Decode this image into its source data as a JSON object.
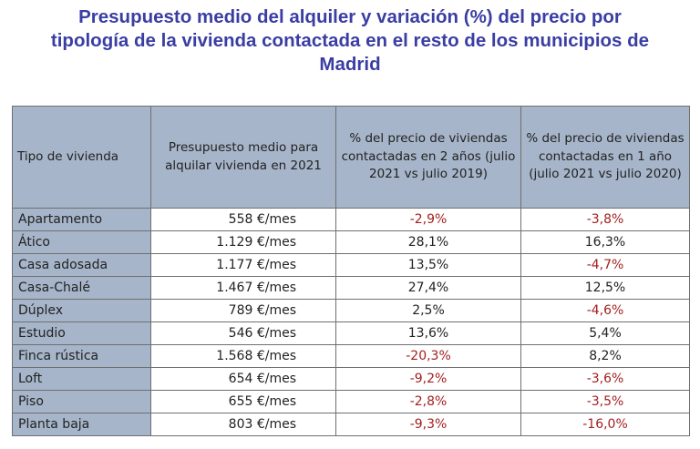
{
  "title": {
    "line1": "Presupuesto medio del alquiler y variación (%) del precio por",
    "line2": "tipología de la vivienda contactada en el resto de los municipios de",
    "line3": "Madrid"
  },
  "colors": {
    "title": "#3a3ea3",
    "header_bg": "#a6b5c9",
    "negative": "#a31f1f",
    "text": "#222222"
  },
  "table": {
    "headers": [
      "Tipo de vivienda",
      "Presupuesto medio para alquilar vivienda en 2021",
      "% del precio de viviendas contactadas en 2 años (julio 2021 vs julio 2019)",
      "% del precio de viviendas contactadas en 1 año (julio 2021 vs julio 2020)"
    ],
    "rows": [
      {
        "tipo": "Apartamento",
        "presupuesto": "558 €/mes",
        "var2": "-2,9%",
        "var1": "-3,8%"
      },
      {
        "tipo": "Ático",
        "presupuesto": "1.129 €/mes",
        "var2": "28,1%",
        "var1": "16,3%"
      },
      {
        "tipo": "Casa adosada",
        "presupuesto": "1.177 €/mes",
        "var2": "13,5%",
        "var1": "-4,7%"
      },
      {
        "tipo": "Casa-Chalé",
        "presupuesto": "1.467 €/mes",
        "var2": "27,4%",
        "var1": "12,5%"
      },
      {
        "tipo": "Dúplex",
        "presupuesto": "789 €/mes",
        "var2": "2,5%",
        "var1": "-4,6%"
      },
      {
        "tipo": "Estudio",
        "presupuesto": "546 €/mes",
        "var2": "13,6%",
        "var1": "5,4%"
      },
      {
        "tipo": "Finca rústica",
        "presupuesto": "1.568 €/mes",
        "var2": "-20,3%",
        "var1": "8,2%"
      },
      {
        "tipo": "Loft",
        "presupuesto": "654 €/mes",
        "var2": "-9,2%",
        "var1": "-3,6%"
      },
      {
        "tipo": "Piso",
        "presupuesto": "655 €/mes",
        "var2": "-2,8%",
        "var1": "-3,5%"
      },
      {
        "tipo": "Planta baja",
        "presupuesto": "803 €/mes",
        "var2": "-9,3%",
        "var1": "-16,0%"
      }
    ]
  }
}
